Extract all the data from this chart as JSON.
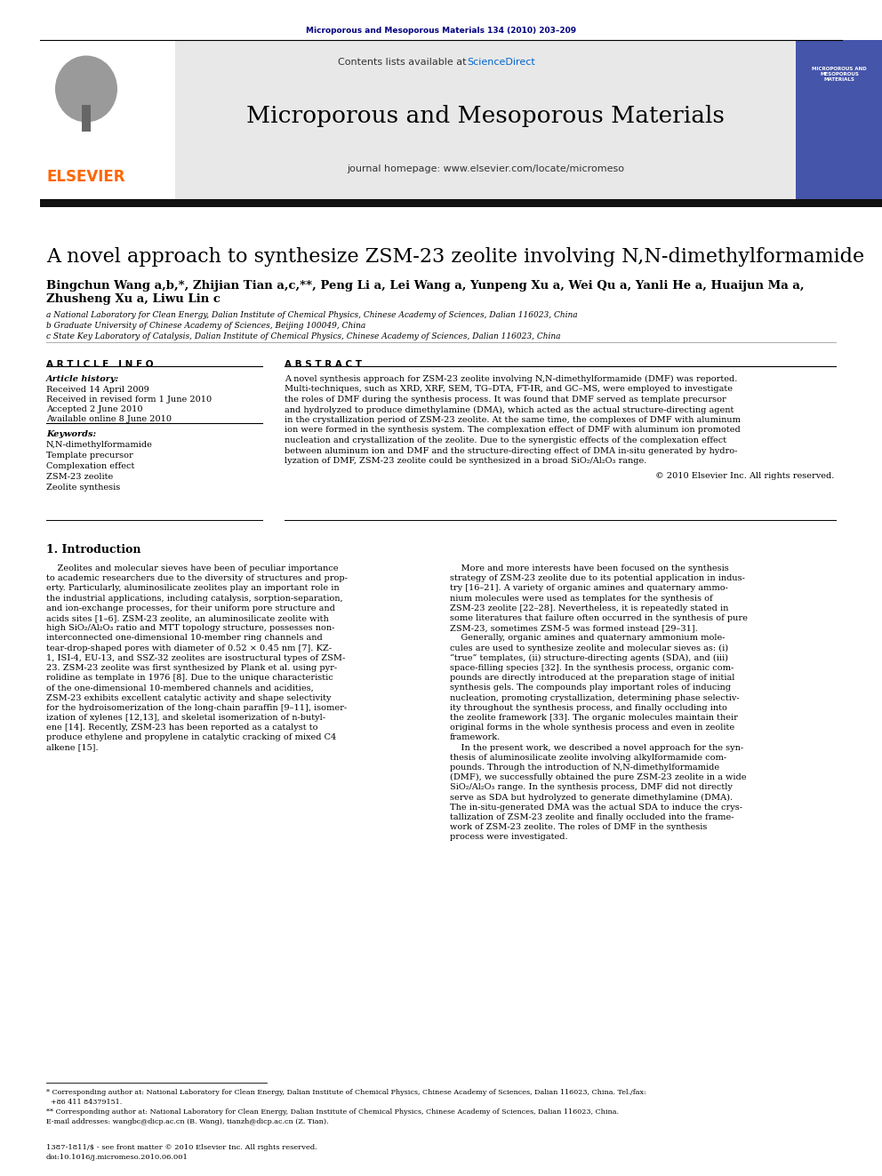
{
  "journal_ref": "Microporous and Mesoporous Materials 134 (2010) 203–209",
  "journal_name": "Microporous and Mesoporous Materials",
  "journal_url": "journal homepage: www.elsevier.com/locate/micromeso",
  "contents_line": "Contents lists available at ",
  "sciencedirect": "ScienceDirect",
  "title": "A novel approach to synthesize ZSM-23 zeolite involving N,N-dimethylformamide",
  "authors_line1": "Bingchun Wang a,b,*, Zhijian Tian a,c,**, Peng Li a, Lei Wang a, Yunpeng Xu a, Wei Qu a, Yanli He a, Huaijun Ma a,",
  "authors_line2": "Zhusheng Xu a, Liwu Lin c",
  "affil_a": "a National Laboratory for Clean Energy, Dalian Institute of Chemical Physics, Chinese Academy of Sciences, Dalian 116023, China",
  "affil_b": "b Graduate University of Chinese Academy of Sciences, Beijing 100049, China",
  "affil_c": "c State Key Laboratory of Catalysis, Dalian Institute of Chemical Physics, Chinese Academy of Sciences, Dalian 116023, China",
  "article_info_title": "A R T I C L E   I N F O",
  "abstract_title": "A B S T R A C T",
  "article_history_title": "Article history:",
  "received": "Received 14 April 2009",
  "received_revised": "Received in revised form 1 June 2010",
  "accepted": "Accepted 2 June 2010",
  "available": "Available online 8 June 2010",
  "keywords_title": "Keywords:",
  "keywords": [
    "N,N-dimethylformamide",
    "Template precursor",
    "Complexation effect",
    "ZSM-23 zeolite",
    "Zeolite synthesis"
  ],
  "copyright": "© 2010 Elsevier Inc. All rights reserved.",
  "section1_title": "1. Introduction",
  "elsevier_orange": "#FF6600",
  "journal_ref_color": "#000080",
  "link_color": "#0066CC",
  "header_bg": "#e8e8e8",
  "cover_bg": "#4455aa",
  "abstract_lines": [
    "A novel synthesis approach for ZSM-23 zeolite involving N,N-dimethylformamide (DMF) was reported.",
    "Multi-techniques, such as XRD, XRF, SEM, TG–DTA, FT-IR, and GC–MS, were employed to investigate",
    "the roles of DMF during the synthesis process. It was found that DMF served as template precursor",
    "and hydrolyzed to produce dimethylamine (DMA), which acted as the actual structure-directing agent",
    "in the crystallization period of ZSM-23 zeolite. At the same time, the complexes of DMF with aluminum",
    "ion were formed in the synthesis system. The complexation effect of DMF with aluminum ion promoted",
    "nucleation and crystallization of the zeolite. Due to the synergistic effects of the complexation effect",
    "between aluminum ion and DMF and the structure-directing effect of DMA in-situ generated by hydro-",
    "lyzation of DMF, ZSM-23 zeolite could be synthesized in a broad SiO₂/Al₂O₃ range."
  ],
  "left_intro_lines": [
    "    Zeolites and molecular sieves have been of peculiar importance",
    "to academic researchers due to the diversity of structures and prop-",
    "erty. Particularly, aluminosilicate zeolites play an important role in",
    "the industrial applications, including catalysis, sorption-separation,",
    "and ion-exchange processes, for their uniform pore structure and",
    "acids sites [1–6]. ZSM-23 zeolite, an aluminosilicate zeolite with",
    "high SiO₂/Al₂O₃ ratio and MTT topology structure, possesses non-",
    "interconnected one-dimensional 10-member ring channels and",
    "tear-drop-shaped pores with diameter of 0.52 × 0.45 nm [7]. KZ-",
    "1, ISI-4, EU-13, and SSZ-32 zeolites are isostructural types of ZSM-",
    "23. ZSM-23 zeolite was first synthesized by Plank et al. using pyr-",
    "rolidine as template in 1976 [8]. Due to the unique characteristic",
    "of the one-dimensional 10-membered channels and acidities,",
    "ZSM-23 exhibits excellent catalytic activity and shape selectivity",
    "for the hydroisomerization of the long-chain paraffin [9–11], isomer-",
    "ization of xylenes [12,13], and skeletal isomerization of n-butyl-",
    "ene [14]. Recently, ZSM-23 has been reported as a catalyst to",
    "produce ethylene and propylene in catalytic cracking of mixed C4",
    "alkene [15]."
  ],
  "right_intro_lines": [
    "    More and more interests have been focused on the synthesis",
    "strategy of ZSM-23 zeolite due to its potential application in indus-",
    "try [16–21]. A variety of organic amines and quaternary ammo-",
    "nium molecules were used as templates for the synthesis of",
    "ZSM-23 zeolite [22–28]. Nevertheless, it is repeatedly stated in",
    "some literatures that failure often occurred in the synthesis of pure",
    "ZSM-23, sometimes ZSM-5 was formed instead [29–31].",
    "    Generally, organic amines and quaternary ammonium mole-",
    "cules are used to synthesize zeolite and molecular sieves as: (i)",
    "“true” templates, (ii) structure-directing agents (SDA), and (iii)",
    "space-filling species [32]. In the synthesis process, organic com-",
    "pounds are directly introduced at the preparation stage of initial",
    "synthesis gels. The compounds play important roles of inducing",
    "nucleation, promoting crystallization, determining phase selectiv-",
    "ity throughout the synthesis process, and finally occluding into",
    "the zeolite framework [33]. The organic molecules maintain their",
    "original forms in the whole synthesis process and even in zeolite",
    "framework.",
    "    In the present work, we described a novel approach for the syn-",
    "thesis of aluminosilicate zeolite involving alkylformamide com-",
    "pounds. Through the introduction of N,N-dimethylformamide",
    "(DMF), we successfully obtained the pure ZSM-23 zeolite in a wide",
    "SiO₂/Al₂O₃ range. In the synthesis process, DMF did not directly",
    "serve as SDA but hydrolyzed to generate dimethylamine (DMA).",
    "The in-situ-generated DMA was the actual SDA to induce the crys-",
    "tallization of ZSM-23 zeolite and finally occluded into the frame-",
    "work of ZSM-23 zeolite. The roles of DMF in the synthesis",
    "process were investigated."
  ],
  "footnote1": "* Corresponding author at: National Laboratory for Clean Energy, Dalian Institute of Chemical Physics, Chinese Academy of Sciences, Dalian 116023, China. Tel./fax:",
  "footnote1b": "  +86 411 84379151.",
  "footnote2": "** Corresponding author at: National Laboratory for Clean Energy, Dalian Institute of Chemical Physics, Chinese Academy of Sciences, Dalian 116023, China.",
  "footnote_email": "E-mail addresses: wangbc@dicp.ac.cn (B. Wang), tianzh@dicp.ac.cn (Z. Tian).",
  "bottom_line1": "1387-1811/$ - see front matter © 2010 Elsevier Inc. All rights reserved.",
  "bottom_line2": "doi:10.1016/j.micromeso.2010.06.001"
}
